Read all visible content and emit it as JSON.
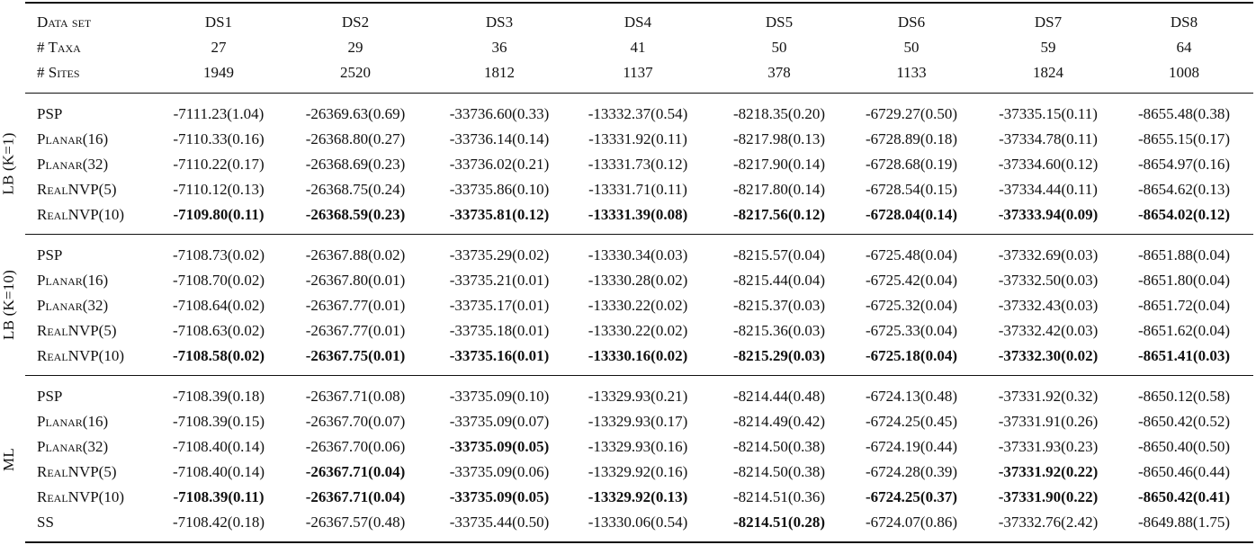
{
  "header": {
    "label_data_set": "Data set",
    "label_taxa": "# Taxa",
    "label_sites": "# Sites",
    "datasets": [
      "DS1",
      "DS2",
      "DS3",
      "DS4",
      "DS5",
      "DS6",
      "DS7",
      "DS8"
    ],
    "taxa": [
      "27",
      "29",
      "36",
      "41",
      "50",
      "50",
      "59",
      "64"
    ],
    "sites": [
      "1949",
      "2520",
      "1812",
      "1137",
      "378",
      "1133",
      "1824",
      "1008"
    ]
  },
  "sections": [
    {
      "label": "LB (K=1)",
      "rows": [
        {
          "method": "PSP",
          "values": [
            "-7111.23(1.04)",
            "-26369.63(0.69)",
            "-33736.60(0.33)",
            "-13332.37(0.54)",
            "-8218.35(0.20)",
            "-6729.27(0.50)",
            "-37335.15(0.11)",
            "-8655.48(0.38)"
          ],
          "bold": [
            false,
            false,
            false,
            false,
            false,
            false,
            false,
            false
          ]
        },
        {
          "method": "Planar(16)",
          "values": [
            "-7110.33(0.16)",
            "-26368.80(0.27)",
            "-33736.14(0.14)",
            "-13331.92(0.11)",
            "-8217.98(0.13)",
            "-6728.89(0.18)",
            "-37334.78(0.11)",
            "-8655.15(0.17)"
          ],
          "bold": [
            false,
            false,
            false,
            false,
            false,
            false,
            false,
            false
          ]
        },
        {
          "method": "Planar(32)",
          "values": [
            "-7110.22(0.17)",
            "-26368.69(0.23)",
            "-33736.02(0.21)",
            "-13331.73(0.12)",
            "-8217.90(0.14)",
            "-6728.68(0.19)",
            "-37334.60(0.12)",
            "-8654.97(0.16)"
          ],
          "bold": [
            false,
            false,
            false,
            false,
            false,
            false,
            false,
            false
          ]
        },
        {
          "method": "RealNVP(5)",
          "values": [
            "-7110.12(0.13)",
            "-26368.75(0.24)",
            "-33735.86(0.10)",
            "-13331.71(0.11)",
            "-8217.80(0.14)",
            "-6728.54(0.15)",
            "-37334.44(0.11)",
            "-8654.62(0.13)"
          ],
          "bold": [
            false,
            false,
            false,
            false,
            false,
            false,
            false,
            false
          ]
        },
        {
          "method": "RealNVP(10)",
          "values": [
            "-7109.80(0.11)",
            "-26368.59(0.23)",
            "-33735.81(0.12)",
            "-13331.39(0.08)",
            "-8217.56(0.12)",
            "-6728.04(0.14)",
            "-37333.94(0.09)",
            "-8654.02(0.12)"
          ],
          "bold": [
            true,
            true,
            true,
            true,
            true,
            true,
            true,
            true
          ]
        }
      ]
    },
    {
      "label": "LB (K=10)",
      "rows": [
        {
          "method": "PSP",
          "values": [
            "-7108.73(0.02)",
            "-26367.88(0.02)",
            "-33735.29(0.02)",
            "-13330.34(0.03)",
            "-8215.57(0.04)",
            "-6725.48(0.04)",
            "-37332.69(0.03)",
            "-8651.88(0.04)"
          ],
          "bold": [
            false,
            false,
            false,
            false,
            false,
            false,
            false,
            false
          ]
        },
        {
          "method": "Planar(16)",
          "values": [
            "-7108.70(0.02)",
            "-26367.80(0.01)",
            "-33735.21(0.01)",
            "-13330.28(0.02)",
            "-8215.44(0.04)",
            "-6725.42(0.04)",
            "-37332.50(0.03)",
            "-8651.80(0.04)"
          ],
          "bold": [
            false,
            false,
            false,
            false,
            false,
            false,
            false,
            false
          ]
        },
        {
          "method": "Planar(32)",
          "values": [
            "-7108.64(0.02)",
            "-26367.77(0.01)",
            "-33735.17(0.01)",
            "-13330.22(0.02)",
            "-8215.37(0.03)",
            "-6725.32(0.04)",
            "-37332.43(0.03)",
            "-8651.72(0.04)"
          ],
          "bold": [
            false,
            false,
            false,
            false,
            false,
            false,
            false,
            false
          ]
        },
        {
          "method": "RealNVP(5)",
          "values": [
            "-7108.63(0.02)",
            "-26367.77(0.01)",
            "-33735.18(0.01)",
            "-13330.22(0.02)",
            "-8215.36(0.03)",
            "-6725.33(0.04)",
            "-37332.42(0.03)",
            "-8651.62(0.04)"
          ],
          "bold": [
            false,
            false,
            false,
            false,
            false,
            false,
            false,
            false
          ]
        },
        {
          "method": "RealNVP(10)",
          "values": [
            "-7108.58(0.02)",
            "-26367.75(0.01)",
            "-33735.16(0.01)",
            "-13330.16(0.02)",
            "-8215.29(0.03)",
            "-6725.18(0.04)",
            "-37332.30(0.02)",
            "-8651.41(0.03)"
          ],
          "bold": [
            true,
            true,
            true,
            true,
            true,
            true,
            true,
            true
          ]
        }
      ]
    },
    {
      "label": "ML",
      "rows": [
        {
          "method": "PSP",
          "values": [
            "-7108.39(0.18)",
            "-26367.71(0.08)",
            "-33735.09(0.10)",
            "-13329.93(0.21)",
            "-8214.44(0.48)",
            "-6724.13(0.48)",
            "-37331.92(0.32)",
            "-8650.12(0.58)"
          ],
          "bold": [
            false,
            false,
            false,
            false,
            false,
            false,
            false,
            false
          ]
        },
        {
          "method": "Planar(16)",
          "values": [
            "-7108.39(0.15)",
            "-26367.70(0.07)",
            "-33735.09(0.07)",
            "-13329.93(0.17)",
            "-8214.49(0.42)",
            "-6724.25(0.45)",
            "-37331.91(0.26)",
            "-8650.42(0.52)"
          ],
          "bold": [
            false,
            false,
            false,
            false,
            false,
            false,
            false,
            false
          ]
        },
        {
          "method": "Planar(32)",
          "values": [
            "-7108.40(0.14)",
            "-26367.70(0.06)",
            "-33735.09(0.05)",
            "-13329.93(0.16)",
            "-8214.50(0.38)",
            "-6724.19(0.44)",
            "-37331.93(0.23)",
            "-8650.40(0.50)"
          ],
          "bold": [
            false,
            false,
            true,
            false,
            false,
            false,
            false,
            false
          ]
        },
        {
          "method": "RealNVP(5)",
          "values": [
            "-7108.40(0.14)",
            "-26367.71(0.04)",
            "-33735.09(0.06)",
            "-13329.92(0.16)",
            "-8214.50(0.38)",
            "-6724.28(0.39)",
            "-37331.92(0.22)",
            "-8650.46(0.44)"
          ],
          "bold": [
            false,
            true,
            false,
            false,
            false,
            false,
            true,
            false
          ]
        },
        {
          "method": "RealNVP(10)",
          "values": [
            "-7108.39(0.11)",
            "-26367.71(0.04)",
            "-33735.09(0.05)",
            "-13329.92(0.13)",
            "-8214.51(0.36)",
            "-6724.25(0.37)",
            "-37331.90(0.22)",
            "-8650.42(0.41)"
          ],
          "bold": [
            true,
            true,
            true,
            true,
            false,
            true,
            true,
            true
          ]
        },
        {
          "method": "SS",
          "values": [
            "-7108.42(0.18)",
            "-26367.57(0.48)",
            "-33735.44(0.50)",
            "-13330.06(0.54)",
            "-8214.51(0.28)",
            "-6724.07(0.86)",
            "-37332.76(2.42)",
            "-8649.88(1.75)"
          ],
          "bold": [
            false,
            false,
            false,
            false,
            true,
            false,
            false,
            false
          ]
        }
      ]
    }
  ]
}
